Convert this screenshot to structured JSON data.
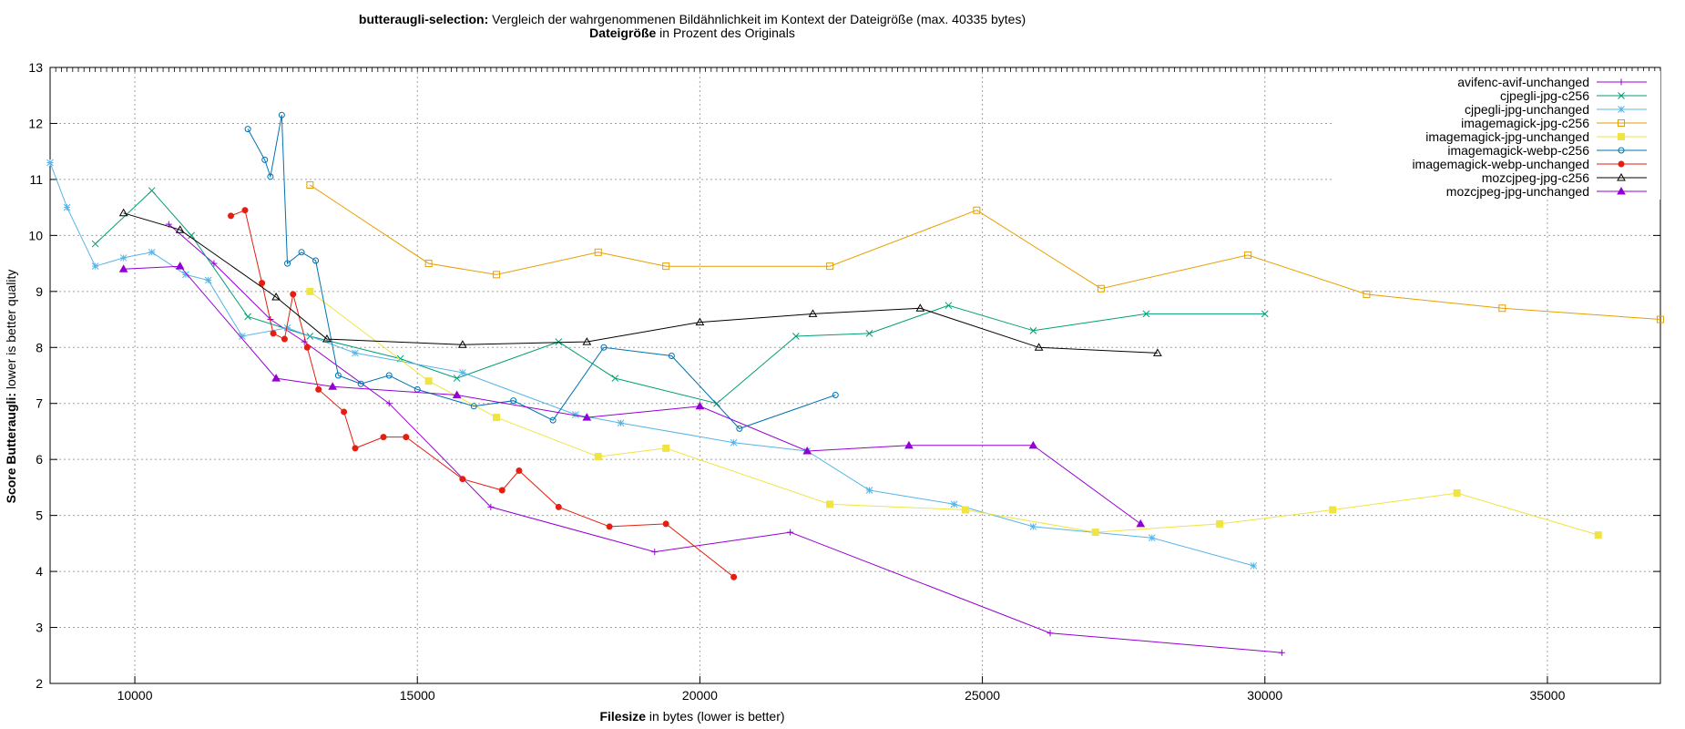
{
  "chart_data": {
    "type": "line",
    "title_bold": "butteraugli-selection:",
    "title_rest": " Vergleich der wahrgenommenen Bildähnlichkeit im Kontext der Dateigröße (max. 40335 bytes)",
    "x2label_bold": "Dateigröße",
    "x2label_rest": " in Prozent des Originals",
    "xlabel_bold": "Filesize",
    "xlabel_rest": " in bytes (lower is better)",
    "ylabel_bold": "Score Butteraugli:",
    "ylabel_rest": " lower is better quality",
    "xlim": [
      8500,
      37000
    ],
    "ylim": [
      2,
      13
    ],
    "xticks": [
      10000,
      15000,
      20000,
      25000,
      30000,
      35000
    ],
    "yticks": [
      2,
      3,
      4,
      5,
      6,
      7,
      8,
      9,
      10,
      11,
      12,
      13
    ],
    "grid": true,
    "legend_position": "top-right",
    "series": [
      {
        "name": "avifenc-avif-unchanged",
        "color": "#9400d3",
        "marker": "plus",
        "points": [
          [
            10600,
            10.2
          ],
          [
            11400,
            9.5
          ],
          [
            12400,
            8.5
          ],
          [
            13000,
            8.1
          ],
          [
            14500,
            7.0
          ],
          [
            16300,
            5.15
          ],
          [
            19200,
            4.35
          ],
          [
            21600,
            4.7
          ],
          [
            26200,
            2.9
          ],
          [
            30300,
            2.55
          ]
        ]
      },
      {
        "name": "cjpegli-jpg-c256",
        "color": "#009e73",
        "marker": "x",
        "points": [
          [
            9300,
            9.85
          ],
          [
            10300,
            10.8
          ],
          [
            11000,
            10.0
          ],
          [
            12000,
            8.55
          ],
          [
            13100,
            8.2
          ],
          [
            14700,
            7.8
          ],
          [
            15700,
            7.45
          ],
          [
            17500,
            8.1
          ],
          [
            18500,
            7.45
          ],
          [
            20300,
            7.0
          ],
          [
            21700,
            8.2
          ],
          [
            23000,
            8.25
          ],
          [
            24400,
            8.75
          ],
          [
            25900,
            8.3
          ],
          [
            27900,
            8.6
          ],
          [
            30000,
            8.6
          ]
        ]
      },
      {
        "name": "cjpegli-jpg-unchanged",
        "color": "#56b4e9",
        "marker": "star",
        "points": [
          [
            8500,
            11.3
          ],
          [
            8800,
            10.5
          ],
          [
            9300,
            9.45
          ],
          [
            9800,
            9.6
          ],
          [
            10300,
            9.7
          ],
          [
            10900,
            9.3
          ],
          [
            11300,
            9.2
          ],
          [
            11900,
            8.2
          ],
          [
            12700,
            8.35
          ],
          [
            13900,
            7.9
          ],
          [
            15800,
            7.55
          ],
          [
            17800,
            6.8
          ],
          [
            18600,
            6.65
          ],
          [
            20600,
            6.3
          ],
          [
            21900,
            6.15
          ],
          [
            23000,
            5.45
          ],
          [
            24500,
            5.2
          ],
          [
            25900,
            4.8
          ],
          [
            28000,
            4.6
          ],
          [
            29800,
            4.1
          ]
        ]
      },
      {
        "name": "imagemagick-jpg-c256",
        "color": "#e69f00",
        "marker": "square",
        "points": [
          [
            13100,
            10.9
          ],
          [
            15200,
            9.5
          ],
          [
            16400,
            9.3
          ],
          [
            18200,
            9.7
          ],
          [
            19400,
            9.45
          ],
          [
            22300,
            9.45
          ],
          [
            24900,
            10.45
          ],
          [
            27100,
            9.05
          ],
          [
            29700,
            9.65
          ],
          [
            31800,
            8.95
          ],
          [
            34200,
            8.7
          ],
          [
            37000,
            8.5
          ]
        ]
      },
      {
        "name": "imagemagick-jpg-unchanged",
        "color": "#f0e442",
        "marker": "filledsquare",
        "points": [
          [
            13100,
            9.0
          ],
          [
            15200,
            7.4
          ],
          [
            16400,
            6.75
          ],
          [
            18200,
            6.05
          ],
          [
            19400,
            6.2
          ],
          [
            22300,
            5.2
          ],
          [
            24700,
            5.1
          ],
          [
            27000,
            4.7
          ],
          [
            29200,
            4.85
          ],
          [
            31200,
            5.1
          ],
          [
            33400,
            5.4
          ],
          [
            35900,
            4.65
          ]
        ]
      },
      {
        "name": "imagemagick-webp-c256",
        "color": "#0072b2",
        "marker": "circle",
        "points": [
          [
            12000,
            11.9
          ],
          [
            12300,
            11.35
          ],
          [
            12400,
            11.05
          ],
          [
            12600,
            12.15
          ],
          [
            12700,
            9.5
          ],
          [
            12950,
            9.7
          ],
          [
            13200,
            9.55
          ],
          [
            13600,
            7.5
          ],
          [
            14000,
            7.35
          ],
          [
            14500,
            7.5
          ],
          [
            15000,
            7.25
          ],
          [
            16000,
            6.95
          ],
          [
            16700,
            7.05
          ],
          [
            17400,
            6.7
          ],
          [
            18300,
            8.0
          ],
          [
            19500,
            7.85
          ],
          [
            20700,
            6.55
          ],
          [
            22400,
            7.15
          ]
        ]
      },
      {
        "name": "imagemagick-webp-unchanged",
        "color": "#e51e10",
        "marker": "filledcircle",
        "points": [
          [
            11700,
            10.35
          ],
          [
            11950,
            10.45
          ],
          [
            12250,
            9.15
          ],
          [
            12450,
            8.25
          ],
          [
            12650,
            8.15
          ],
          [
            12800,
            8.95
          ],
          [
            13050,
            8.0
          ],
          [
            13250,
            7.25
          ],
          [
            13700,
            6.85
          ],
          [
            13900,
            6.2
          ],
          [
            14400,
            6.4
          ],
          [
            14800,
            6.4
          ],
          [
            15800,
            5.65
          ],
          [
            16500,
            5.45
          ],
          [
            16800,
            5.8
          ],
          [
            17500,
            5.15
          ],
          [
            18400,
            4.8
          ],
          [
            19400,
            4.85
          ],
          [
            20600,
            3.9
          ]
        ]
      },
      {
        "name": "mozcjpeg-jpg-c256",
        "color": "#000000",
        "marker": "triangle",
        "points": [
          [
            9800,
            10.4
          ],
          [
            10800,
            10.1
          ],
          [
            12500,
            8.9
          ],
          [
            13400,
            8.15
          ],
          [
            15800,
            8.05
          ],
          [
            18000,
            8.1
          ],
          [
            20000,
            8.45
          ],
          [
            22000,
            8.6
          ],
          [
            23900,
            8.7
          ],
          [
            26000,
            8.0
          ],
          [
            28100,
            7.9
          ]
        ]
      },
      {
        "name": "mozcjpeg-jpg-unchanged",
        "color": "#9400d3",
        "marker": "filledtriangle",
        "points": [
          [
            9800,
            9.4
          ],
          [
            10800,
            9.45
          ],
          [
            12500,
            7.45
          ],
          [
            13500,
            7.3
          ],
          [
            15700,
            7.15
          ],
          [
            18000,
            6.75
          ],
          [
            20000,
            6.95
          ],
          [
            21900,
            6.15
          ],
          [
            23700,
            6.25
          ],
          [
            25900,
            6.25
          ],
          [
            27800,
            4.85
          ]
        ]
      }
    ]
  }
}
